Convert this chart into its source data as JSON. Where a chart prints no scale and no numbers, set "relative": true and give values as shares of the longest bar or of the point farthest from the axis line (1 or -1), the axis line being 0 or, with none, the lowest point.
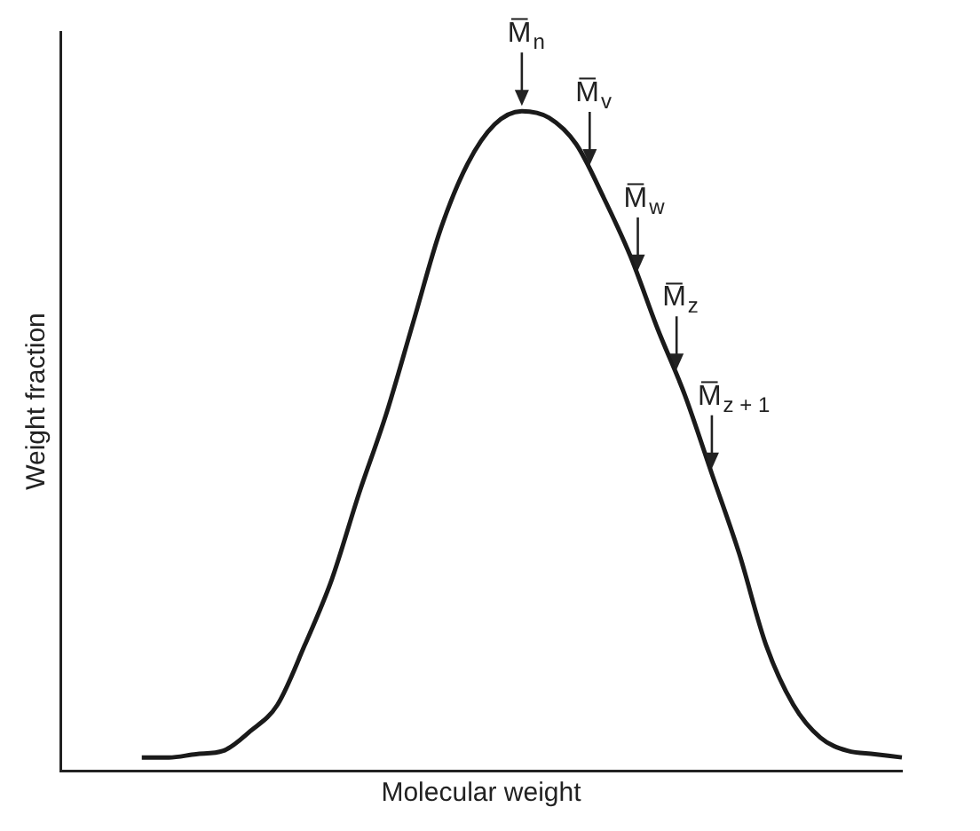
{
  "chart_data": {
    "type": "line",
    "relative": true,
    "xlabel": "Molecular weight",
    "ylabel": "Weight fraction",
    "color": "#1a1a1a",
    "grid": false,
    "legend": false,
    "marker": "none",
    "line_style": "solid",
    "categories": [
      null,
      null,
      null,
      null,
      null,
      null,
      null,
      null,
      null,
      null,
      null,
      null,
      null,
      null,
      null,
      null,
      null,
      null,
      null,
      null,
      null,
      null,
      null,
      null,
      null,
      null,
      null,
      null,
      null,
      null,
      null,
      null
    ],
    "values": [
      null,
      null,
      null,
      0.02,
      0.02,
      0.025,
      0.03,
      0.06,
      0.1,
      0.19,
      0.29,
      0.42,
      0.54,
      0.68,
      0.82,
      0.92,
      0.98,
      1,
      0.99,
      0.95,
      0.87,
      0.78,
      0.67,
      0.57,
      0.45,
      0.33,
      0.19,
      0.1,
      0.05,
      0.03,
      0.025,
      0.02
    ],
    "annotations": [
      {
        "text": "M̅$_{n}$",
        "y": 1
      },
      {
        "text": "M̅$_{v}$",
        "y": 0.91
      },
      {
        "text": "M̅$_{w}$",
        "y": 0.75
      },
      {
        "text": "M̅$_{z}$",
        "y": 0.6
      },
      "M̅$_{z + 1}$"
    ]
  }
}
